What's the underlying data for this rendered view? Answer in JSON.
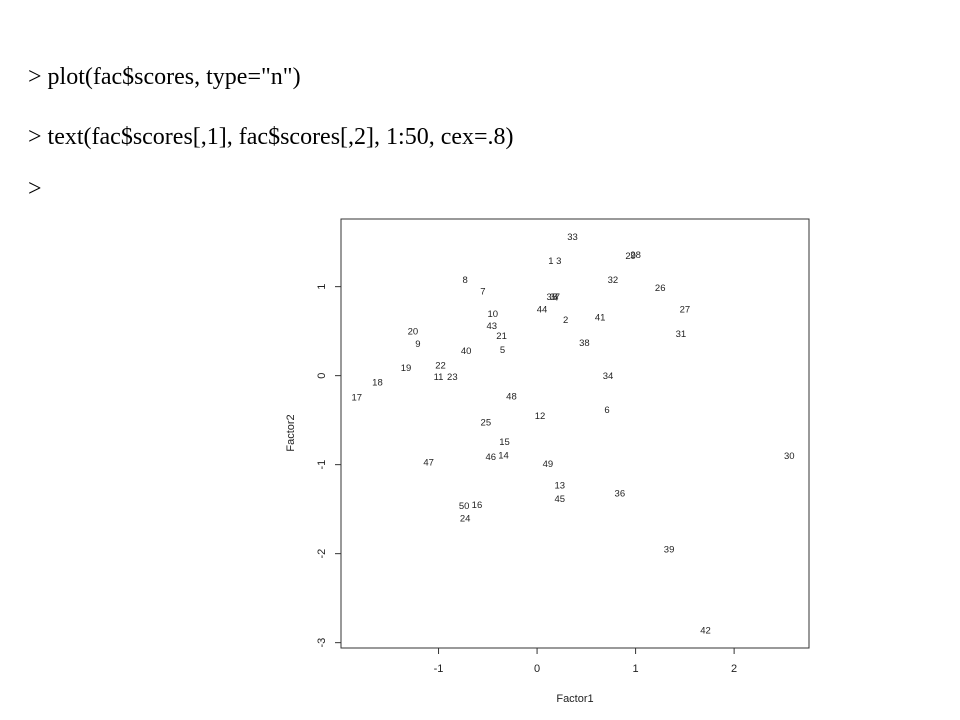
{
  "console": {
    "lines": [
      "> plot(fac$scores, type=\"n\")",
      "> text(fac$scores[,1], fac$scores[,2], 1:50, cex=.8)",
      ">"
    ]
  },
  "chart_data": {
    "type": "scatter",
    "x_label": "Factor1",
    "y_label": "Factor2",
    "labels": [
      "1",
      "2",
      "3",
      "4",
      "5",
      "6",
      "7",
      "8",
      "9",
      "10",
      "11",
      "12",
      "13",
      "14",
      "15",
      "16",
      "17",
      "18",
      "19",
      "20",
      "21",
      "22",
      "23",
      "24",
      "25",
      "26",
      "27",
      "28",
      "29",
      "30",
      "31",
      "32",
      "33",
      "34",
      "35",
      "36",
      "37",
      "38",
      "39",
      "40",
      "41",
      "42",
      "43",
      "44",
      "45",
      "46",
      "47",
      "48",
      "49",
      "50"
    ],
    "x": [
      0.14,
      0.29,
      0.22,
      0.19,
      -0.35,
      0.71,
      -0.55,
      -0.73,
      -1.21,
      -0.45,
      -1.0,
      0.03,
      0.23,
      -0.34,
      -0.33,
      -0.61,
      -1.83,
      -1.62,
      -1.33,
      -1.26,
      -0.36,
      -0.98,
      -0.86,
      -0.73,
      -0.52,
      1.25,
      1.5,
      1.0,
      0.95,
      2.56,
      1.46,
      0.77,
      0.36,
      0.72,
      0.15,
      0.84,
      0.18,
      0.48,
      1.34,
      -0.72,
      0.64,
      1.71,
      -0.46,
      0.05,
      0.23,
      -0.47,
      -1.1,
      -0.26,
      0.11,
      -0.74
    ],
    "y": [
      1.28,
      0.62,
      1.28,
      0.87,
      0.28,
      -0.39,
      0.94,
      1.07,
      0.35,
      0.69,
      -0.02,
      -0.46,
      -1.24,
      -0.9,
      -0.75,
      -1.46,
      -0.25,
      -0.08,
      0.08,
      0.49,
      0.44,
      0.11,
      -0.02,
      -1.61,
      -0.53,
      0.98,
      0.74,
      1.35,
      1.34,
      -0.91,
      0.46,
      1.07,
      1.55,
      -0.01,
      0.88,
      -1.33,
      0.88,
      0.36,
      -1.96,
      0.27,
      0.65,
      -2.87,
      0.55,
      0.74,
      -1.39,
      -0.92,
      -0.98,
      -0.24,
      -1.0,
      -1.47
    ],
    "xlim": [
      -1.99,
      2.76
    ],
    "ylim": [
      -3.06,
      1.76
    ],
    "xticks": [
      -1,
      0,
      1,
      2
    ],
    "yticks": [
      -3,
      -2,
      -1,
      0,
      1
    ]
  }
}
